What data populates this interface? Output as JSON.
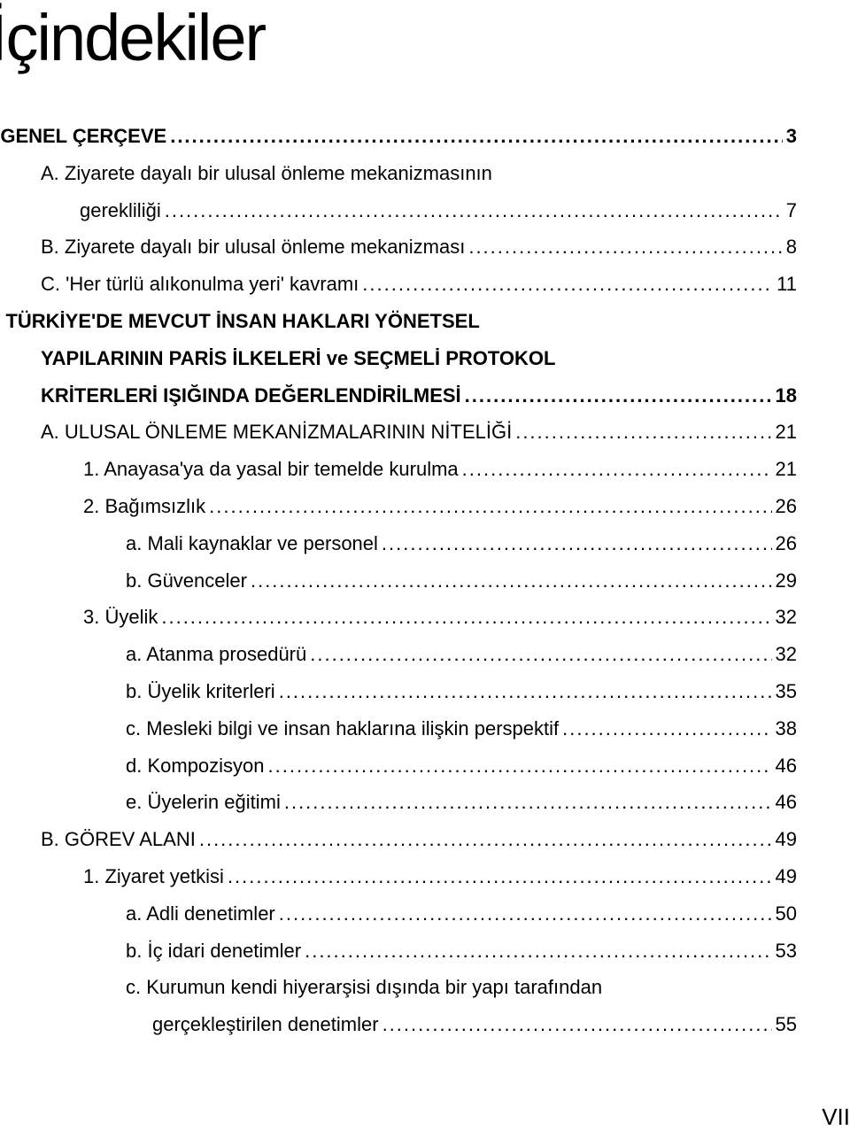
{
  "title": "İçindekiler",
  "entries": [
    {
      "cls": "lv-neg bold",
      "label": "I.  GENEL ÇERÇEVE",
      "page": "3"
    },
    {
      "cls": "lv1",
      "label": "A.  Ziyarete dayalı bir ulusal önleme mekanizmasının",
      "page": ""
    },
    {
      "cls": "cont",
      "label": "gerekliliği",
      "page": "7"
    },
    {
      "cls": "lv1",
      "label": "B.  Ziyarete dayalı bir ulusal önleme mekanizması",
      "page": "8"
    },
    {
      "cls": "lv1",
      "label": "C.  'Her türlü alıkonulma yeri' kavramı",
      "page": "11"
    },
    {
      "cls": "lv-neg bold",
      "label": "II.  TÜRKİYE'DE MEVCUT İNSAN HAKLARI YÖNETSEL",
      "page": ""
    },
    {
      "cls": "cont-b bold",
      "label": "YAPILARININ PARİS İLKELERİ ve SEÇMELİ PROTOKOL",
      "page": ""
    },
    {
      "cls": "cont-b bold",
      "label": "KRİTERLERİ IŞIĞINDA DEĞERLENDİRİLMESİ",
      "page": "18"
    },
    {
      "cls": "lv1",
      "label": "A.  ULUSAL ÖNLEME MEKANİZMALARININ NİTELİĞİ",
      "page": "21"
    },
    {
      "cls": "lv2",
      "label": "1. Anayasa'ya da yasal bir temelde kurulma",
      "page": "21"
    },
    {
      "cls": "lv2",
      "label": "2. Bağımsızlık",
      "page": "26"
    },
    {
      "cls": "lv3",
      "label": "a. Mali kaynaklar ve personel",
      "page": "26"
    },
    {
      "cls": "lv3",
      "label": "b. Güvenceler",
      "page": "29"
    },
    {
      "cls": "lv2",
      "label": "3. Üyelik",
      "page": "32"
    },
    {
      "cls": "lv3",
      "label": "a. Atanma prosedürü",
      "page": "32"
    },
    {
      "cls": "lv3",
      "label": "b. Üyelik kriterleri",
      "page": "35"
    },
    {
      "cls": "lv3",
      "label": "c. Mesleki bilgi ve insan haklarına ilişkin perspektif",
      "page": "38"
    },
    {
      "cls": "lv3",
      "label": "d. Kompozisyon",
      "page": "46"
    },
    {
      "cls": "lv3",
      "label": "e. Üyelerin eğitimi",
      "page": "46"
    },
    {
      "cls": "lv1",
      "label": "B.  GÖREV ALANI",
      "page": "49"
    },
    {
      "cls": "lv2",
      "label": "1. Ziyaret yetkisi",
      "page": "49"
    },
    {
      "cls": "lv3",
      "label": "a. Adli denetimler",
      "page": "50"
    },
    {
      "cls": "lv3",
      "label": "b. İç idari denetimler",
      "page": "53"
    },
    {
      "cls": "lv3",
      "label": "c. Kurumun kendi hiyerarşisi dışında bir yapı tarafından",
      "page": ""
    },
    {
      "cls": "cont-c",
      "label": "gerçekleştirilen denetimler",
      "page": "55"
    }
  ],
  "footer": "VII"
}
